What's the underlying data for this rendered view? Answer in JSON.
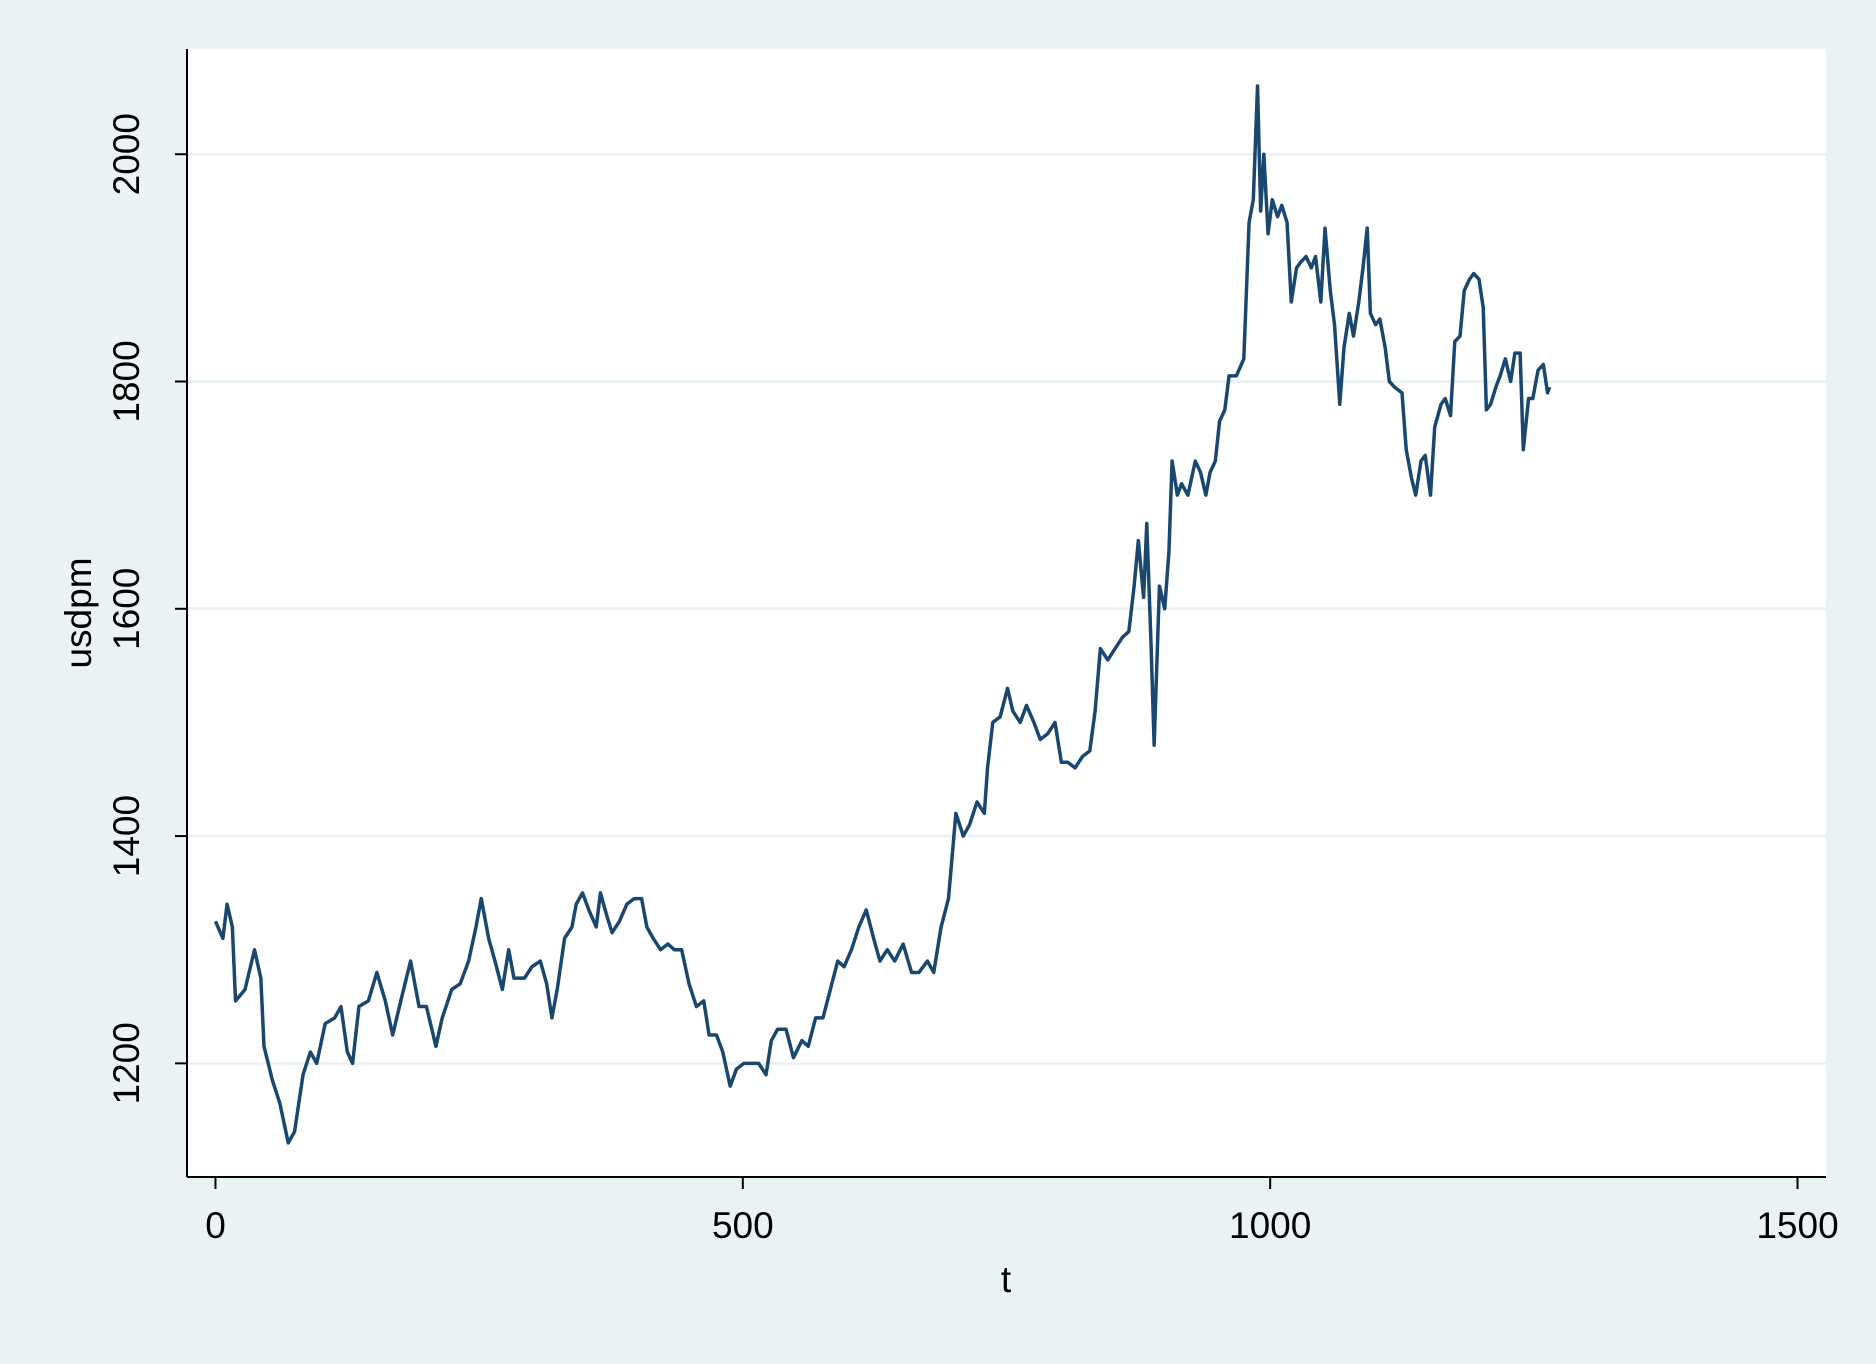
{
  "chart_data": {
    "type": "line",
    "x_label": "t",
    "y_label": "usdpm",
    "x": [
      0,
      7,
      11,
      16,
      19,
      28,
      37,
      43,
      46,
      54,
      61,
      69,
      75,
      83,
      90,
      96,
      104,
      113,
      119,
      125,
      130,
      136,
      145,
      153,
      161,
      168,
      177,
      185,
      193,
      200,
      209,
      215,
      224,
      232,
      240,
      247,
      252,
      259,
      265,
      272,
      278,
      283,
      293,
      300,
      308,
      314,
      319,
      324,
      331,
      338,
      342,
      348,
      354,
      361,
      365,
      371,
      376,
      383,
      390,
      397,
      404,
      409,
      415,
      422,
      429,
      435,
      442,
      449,
      456,
      463,
      468,
      475,
      481,
      488,
      494,
      501,
      508,
      515,
      522,
      527,
      533,
      541,
      548,
      556,
      562,
      569,
      576,
      583,
      590,
      596,
      603,
      610,
      617,
      624,
      630,
      637,
      644,
      652,
      660,
      667,
      675,
      681,
      688,
      695,
      702,
      709,
      715,
      722,
      729,
      732,
      737,
      744,
      751,
      756,
      763,
      769,
      776,
      782,
      789,
      796,
      802,
      808,
      815,
      822,
      829,
      834,
      839,
      846,
      853,
      860,
      866,
      871,
      875,
      880,
      883,
      887,
      890,
      895,
      900,
      904,
      907,
      912,
      916,
      922,
      929,
      934,
      939,
      943,
      948,
      952,
      957,
      961,
      968,
      975,
      980,
      984,
      988,
      991,
      994,
      998,
      1002,
      1007,
      1011,
      1016,
      1020,
      1025,
      1029,
      1034,
      1039,
      1043,
      1048,
      1052,
      1057,
      1061,
      1066,
      1070,
      1075,
      1079,
      1084,
      1088,
      1092,
      1095,
      1100,
      1104,
      1109,
      1113,
      1118,
      1125,
      1129,
      1134,
      1138,
      1143,
      1147,
      1152,
      1156,
      1162,
      1166,
      1171,
      1175,
      1180,
      1184,
      1189,
      1193,
      1198,
      1202,
      1205,
      1209,
      1214,
      1218,
      1223,
      1228,
      1232,
      1237,
      1240,
      1245,
      1249,
      1254,
      1259,
      1263,
      1265
    ],
    "values": [
      1325,
      1310,
      1340,
      1320,
      1255,
      1265,
      1300,
      1275,
      1215,
      1185,
      1165,
      1130,
      1140,
      1190,
      1210,
      1200,
      1235,
      1240,
      1250,
      1210,
      1200,
      1250,
      1255,
      1280,
      1255,
      1225,
      1260,
      1290,
      1250,
      1250,
      1215,
      1240,
      1265,
      1270,
      1290,
      1320,
      1345,
      1310,
      1290,
      1265,
      1300,
      1275,
      1275,
      1285,
      1290,
      1270,
      1240,
      1265,
      1310,
      1320,
      1340,
      1350,
      1335,
      1320,
      1350,
      1330,
      1315,
      1325,
      1340,
      1345,
      1345,
      1320,
      1310,
      1300,
      1305,
      1300,
      1300,
      1270,
      1250,
      1255,
      1225,
      1225,
      1210,
      1180,
      1195,
      1200,
      1200,
      1200,
      1190,
      1220,
      1230,
      1230,
      1205,
      1220,
      1215,
      1240,
      1240,
      1265,
      1290,
      1285,
      1300,
      1320,
      1335,
      1310,
      1290,
      1300,
      1290,
      1305,
      1280,
      1280,
      1290,
      1280,
      1320,
      1345,
      1420,
      1400,
      1410,
      1430,
      1420,
      1460,
      1500,
      1505,
      1530,
      1510,
      1500,
      1515,
      1500,
      1485,
      1490,
      1500,
      1465,
      1465,
      1460,
      1470,
      1475,
      1510,
      1565,
      1555,
      1565,
      1575,
      1580,
      1620,
      1660,
      1610,
      1675,
      1570,
      1480,
      1620,
      1600,
      1650,
      1730,
      1700,
      1710,
      1700,
      1730,
      1720,
      1700,
      1720,
      1730,
      1765,
      1775,
      1805,
      1805,
      1820,
      1940,
      1960,
      2060,
      1950,
      2000,
      1930,
      1960,
      1945,
      1955,
      1940,
      1870,
      1900,
      1905,
      1910,
      1900,
      1910,
      1870,
      1935,
      1880,
      1850,
      1780,
      1830,
      1860,
      1840,
      1870,
      1900,
      1935,
      1860,
      1850,
      1855,
      1830,
      1800,
      1795,
      1790,
      1740,
      1715,
      1700,
      1730,
      1735,
      1700,
      1760,
      1780,
      1785,
      1770,
      1835,
      1840,
      1880,
      1890,
      1895,
      1890,
      1865,
      1775,
      1780,
      1795,
      1805,
      1820,
      1800,
      1825,
      1825,
      1740,
      1785,
      1785,
      1810,
      1815,
      1790,
      1795
    ],
    "color": "#1a476f",
    "xlim": [
      -27,
      1527
    ],
    "ylim": [
      1100,
      2092.6
    ],
    "xticks": [
      0,
      500,
      1000,
      1500
    ],
    "yticks": [
      1200,
      1400,
      1600,
      1800,
      2000
    ],
    "grid": true
  }
}
